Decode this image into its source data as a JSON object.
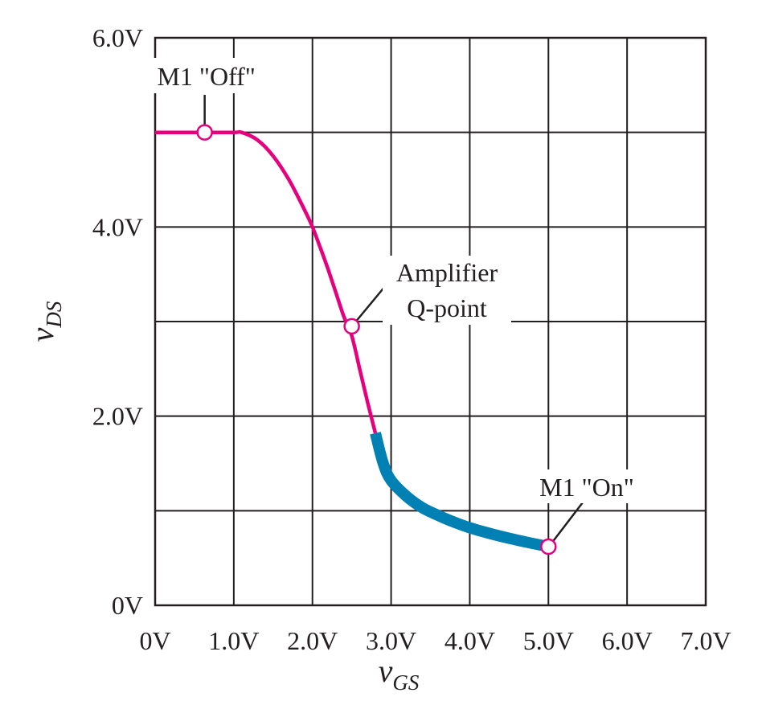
{
  "chart_data": {
    "type": "line",
    "xlabel": "v",
    "xlabel_sub": "GS",
    "ylabel": "v",
    "ylabel_sub": "DS",
    "xlim": [
      0,
      7
    ],
    "ylim": [
      0,
      6
    ],
    "grid": true,
    "x_ticks": [
      {
        "value": 0,
        "label": "0V"
      },
      {
        "value": 1,
        "label": "1.0V"
      },
      {
        "value": 2,
        "label": "2.0V"
      },
      {
        "value": 3,
        "label": "3.0V"
      },
      {
        "value": 4,
        "label": "4.0V"
      },
      {
        "value": 5,
        "label": "5.0V"
      },
      {
        "value": 6,
        "label": "6.0V"
      },
      {
        "value": 7,
        "label": "7.0V"
      }
    ],
    "y_ticks": [
      {
        "value": 0,
        "label": "0V"
      },
      {
        "value": 2,
        "label": "2.0V"
      },
      {
        "value": 4,
        "label": "4.0V"
      },
      {
        "value": 6,
        "label": "6.0V"
      }
    ],
    "y_grid_values": [
      1,
      2,
      3,
      4,
      5
    ],
    "series": [
      {
        "color": "#e6007e",
        "x": [
          0,
          0.5,
          1.0,
          1.1,
          1.3,
          1.5,
          1.7,
          1.9,
          2.0,
          2.1,
          2.2,
          2.3,
          2.4,
          2.5,
          2.6,
          2.7,
          2.8
        ],
        "y": [
          5.0,
          5.0,
          5.0,
          5.0,
          4.92,
          4.75,
          4.5,
          4.18,
          4.0,
          3.78,
          3.55,
          3.3,
          3.05,
          2.85,
          2.5,
          2.15,
          1.82
        ]
      },
      {
        "color": "#0080b3",
        "x": [
          2.8,
          2.9,
          3.0,
          3.2,
          3.4,
          3.6,
          3.8,
          4.0,
          4.3,
          4.6,
          5.0
        ],
        "y": [
          1.82,
          1.5,
          1.32,
          1.15,
          1.03,
          0.95,
          0.88,
          0.82,
          0.75,
          0.69,
          0.62
        ]
      }
    ],
    "annotations": [
      {
        "label": "M1 \"Off\"",
        "x": 0.63,
        "y": 5.0
      },
      {
        "label_lines": [
          "Amplifier",
          "Q-point"
        ],
        "x": 2.5,
        "y": 2.95
      },
      {
        "label": "M1 \"On\"",
        "x": 5.0,
        "y": 0.62
      }
    ]
  }
}
